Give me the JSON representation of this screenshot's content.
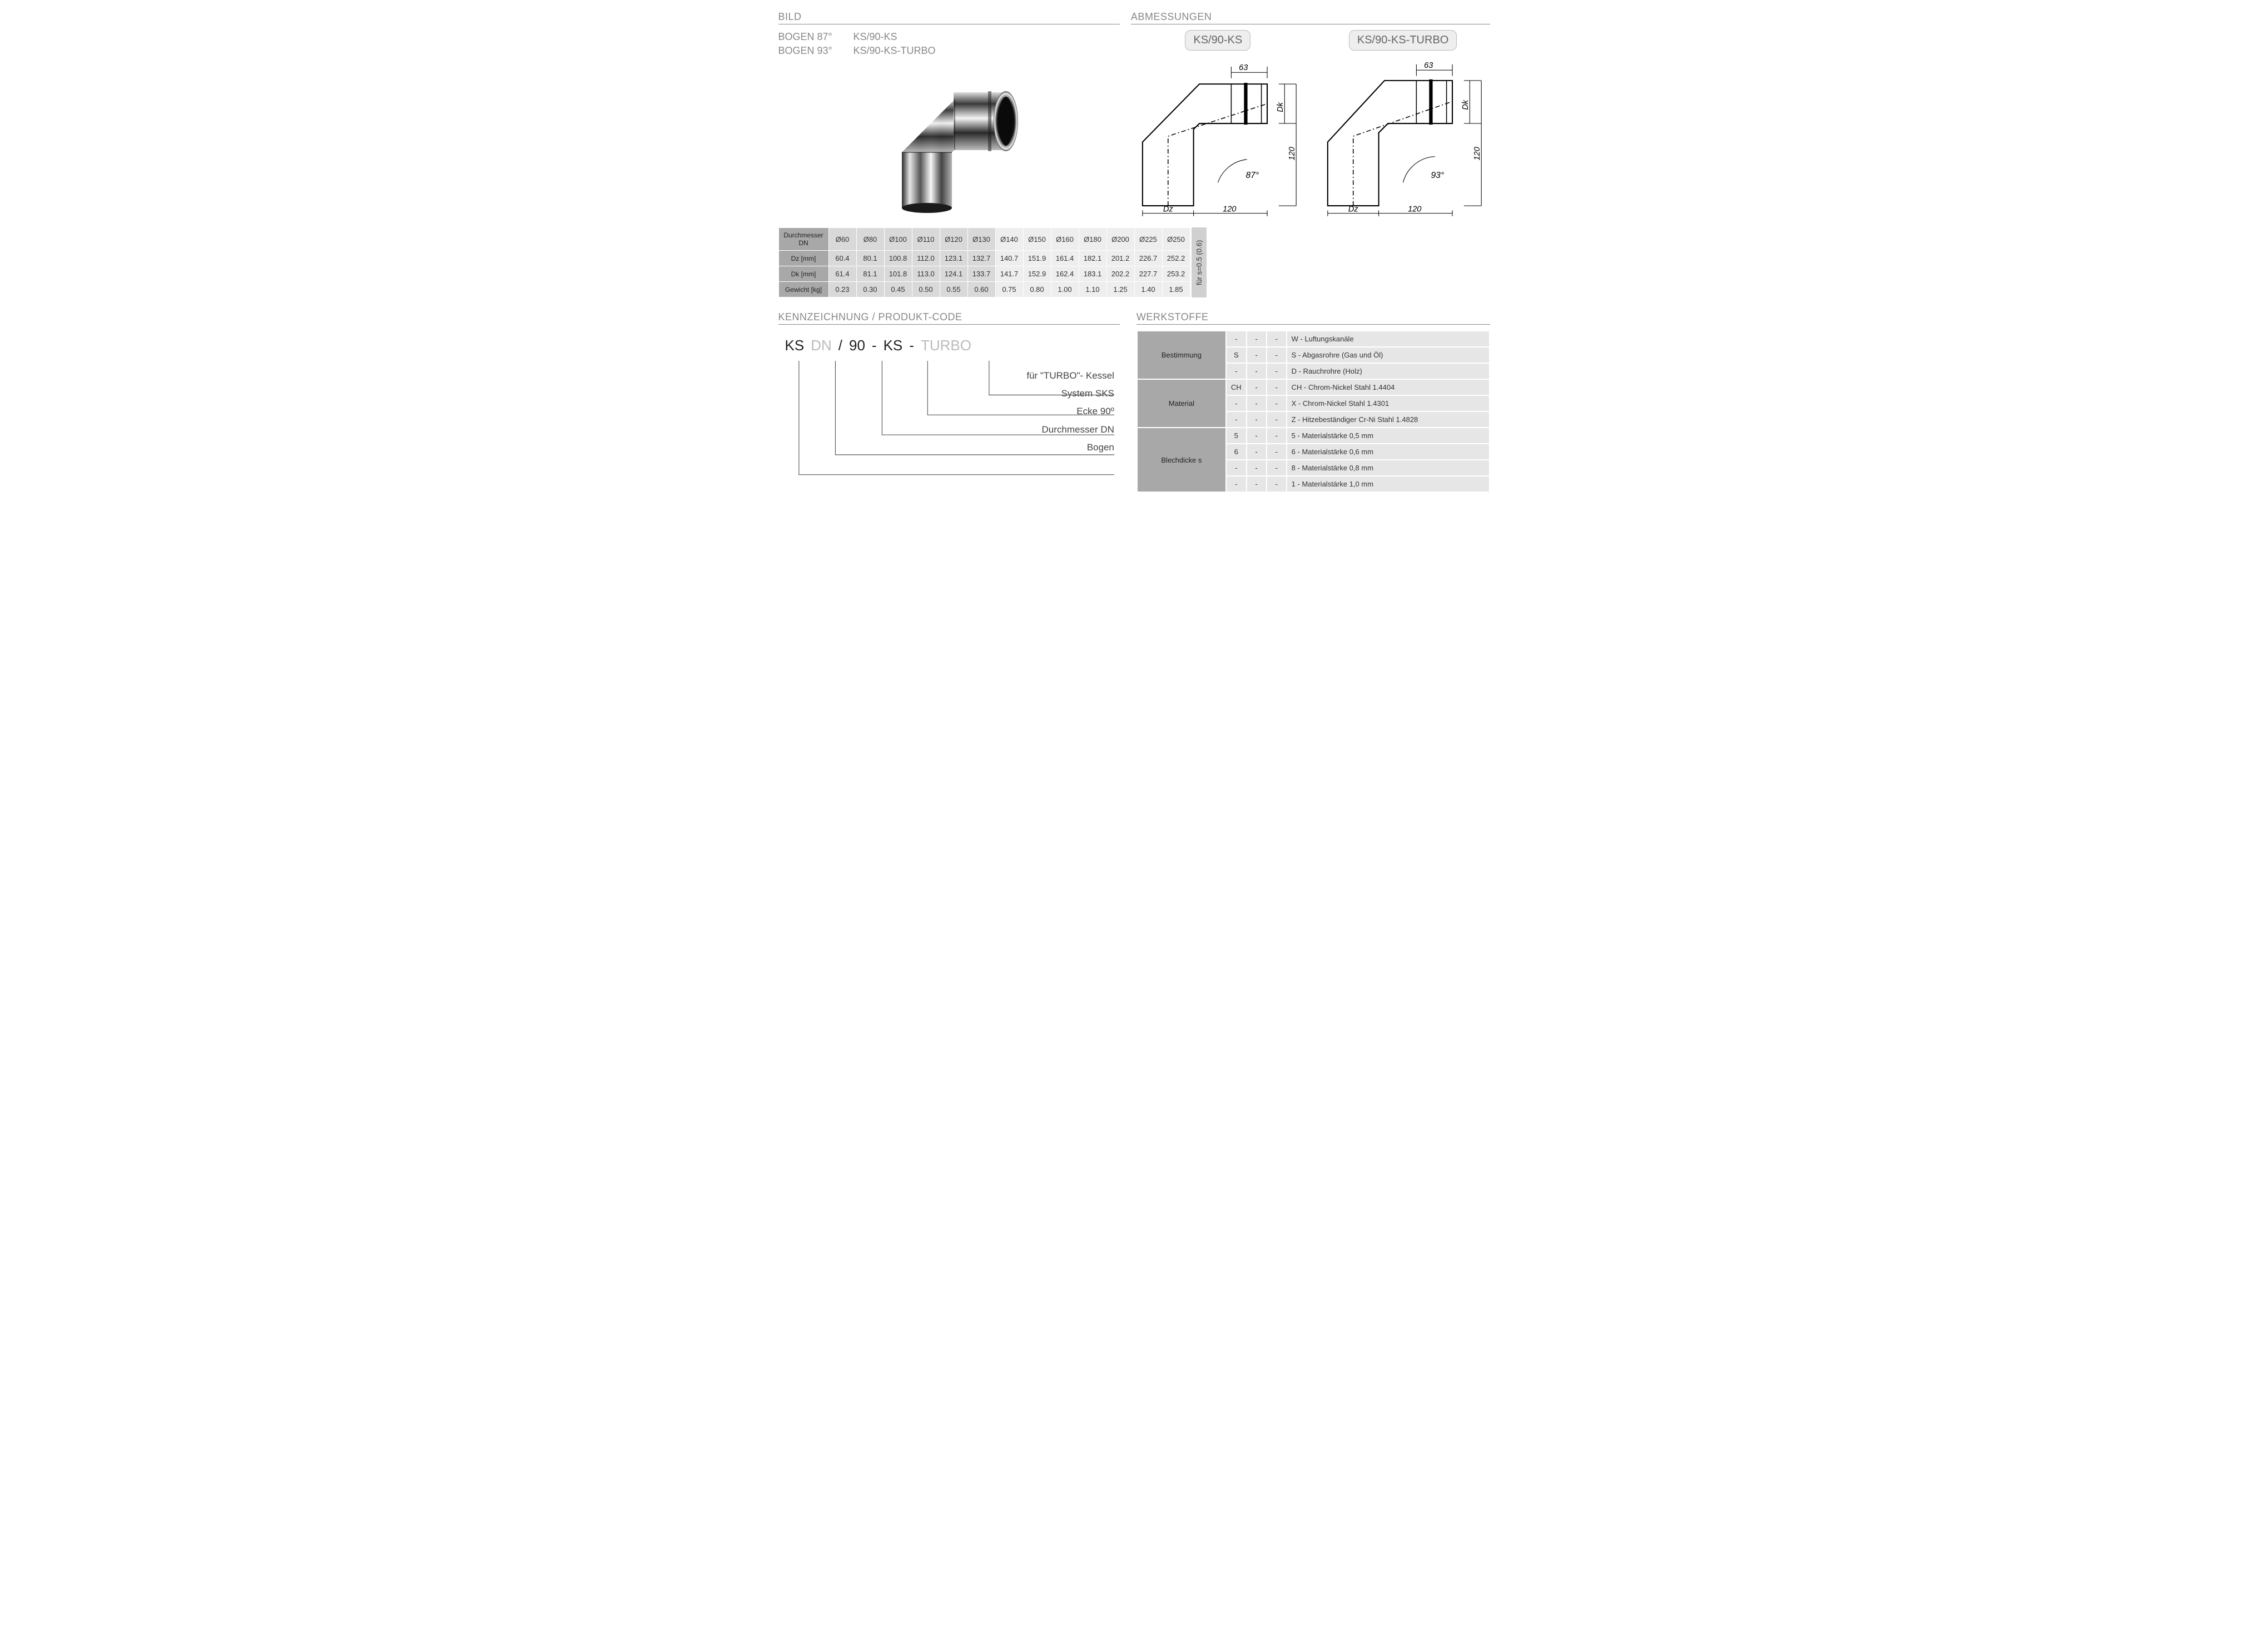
{
  "sections": {
    "bild": "BILD",
    "abmessungen": "ABMESSUNGEN",
    "kennzeichnung": "KENNZEICHNUNG  / PRODUKT-CODE",
    "werkstoffe": "WERKSTOFFE"
  },
  "product_names": {
    "row1_left": "BOGEN 87°",
    "row1_right": "KS/90-KS",
    "row2_left": "BOGEN 93°",
    "row2_right": "KS/90-KS-TURBO"
  },
  "diagrams": {
    "left": {
      "label": "KS/90-KS",
      "angle": "87°",
      "dim_63": "63",
      "dim_120h": "120",
      "dim_120v": "120",
      "dz": "Dz",
      "dk": "Dk"
    },
    "right": {
      "label": "KS/90-KS-TURBO",
      "angle": "93°",
      "dim_63": "63",
      "dim_120h": "120",
      "dim_120v": "120",
      "dz": "Dz",
      "dk": "Dk"
    }
  },
  "dim_table": {
    "row_headers": [
      "Durchmesser DN",
      "Dz [mm]",
      "Dk [mm]",
      "Gewicht [kg]"
    ],
    "columns": [
      "Ø60",
      "Ø80",
      "Ø100",
      "Ø110",
      "Ø120",
      "Ø130",
      "Ø140",
      "Ø150",
      "Ø160",
      "Ø180",
      "Ø200",
      "Ø225",
      "Ø250"
    ],
    "dz": [
      "60.4",
      "80.1",
      "100.8",
      "112.0",
      "123.1",
      "132.7",
      "140.7",
      "151.9",
      "161.4",
      "182.1",
      "201.2",
      "226.7",
      "252.2"
    ],
    "dk": [
      "61.4",
      "81.1",
      "101.8",
      "113.0",
      "124.1",
      "133.7",
      "141.7",
      "152.9",
      "162.4",
      "183.1",
      "202.2",
      "227.7",
      "253.2"
    ],
    "weight": [
      "0.23",
      "0.30",
      "0.45",
      "0.50",
      "0.55",
      "0.60",
      "0.75",
      "0.80",
      "1.00",
      "1.10",
      "1.25",
      "1.40",
      "1.85"
    ],
    "shade_split_index": 6,
    "sidenote": "für s=0.5 (0.6)"
  },
  "code": {
    "segments": [
      {
        "text": "KS",
        "dim": false
      },
      {
        "text": "DN",
        "dim": true
      },
      {
        "text": "/",
        "dim": false,
        "sep": true
      },
      {
        "text": "90",
        "dim": false
      },
      {
        "text": "-",
        "dim": false,
        "sep": true
      },
      {
        "text": "KS",
        "dim": false
      },
      {
        "text": "-",
        "dim": false,
        "sep": true
      },
      {
        "text": "TURBO",
        "dim": true
      }
    ],
    "labels": [
      "für \"TURBO\"- Kessel",
      "System SKS",
      "Ecke  90º",
      "Durchmesser DN",
      "Bogen"
    ]
  },
  "werkstoffe": {
    "groups": [
      {
        "name": "Bestimmung",
        "rows": [
          {
            "c": [
              "-",
              "-",
              "-"
            ],
            "desc": "W - Luftungskanäle"
          },
          {
            "c": [
              "S",
              "-",
              "-"
            ],
            "desc": "S  - Abgasrohre (Gas und Öl)"
          },
          {
            "c": [
              "-",
              "-",
              "-"
            ],
            "desc": "D  - Rauchrohre (Holz)"
          }
        ]
      },
      {
        "name": "Material",
        "rows": [
          {
            "c": [
              "CH",
              "-",
              "-"
            ],
            "desc": "CH - Chrom-Nickel Stahl  1.4404"
          },
          {
            "c": [
              "-",
              "-",
              "-"
            ],
            "desc": "X   - Chrom-Nickel Stahl  1.4301"
          },
          {
            "c": [
              "-",
              "-",
              "-"
            ],
            "desc": "Z   - Hitzebeständiger Cr-Ni Stahl 1.4828"
          }
        ]
      },
      {
        "name": "Blechdicke s",
        "rows": [
          {
            "c": [
              "5",
              "-",
              "-"
            ],
            "desc": "5 - Materialstärke 0,5 mm"
          },
          {
            "c": [
              "6",
              "-",
              "-"
            ],
            "desc": "6 - Materialstärke 0,6 mm"
          },
          {
            "c": [
              "-",
              "-",
              "-"
            ],
            "desc": "8 - Materialstärke 0,8 mm"
          },
          {
            "c": [
              "-",
              "-",
              "-"
            ],
            "desc": "1  - Materialstärke 1,0 mm"
          }
        ]
      }
    ]
  },
  "colors": {
    "section_title": "#888888",
    "table_header_bg": "#a8a8a8",
    "table_shade_a": "#d9d9d9",
    "table_shade_b": "#eeeeee",
    "dim_text": "#bbbbbb"
  }
}
